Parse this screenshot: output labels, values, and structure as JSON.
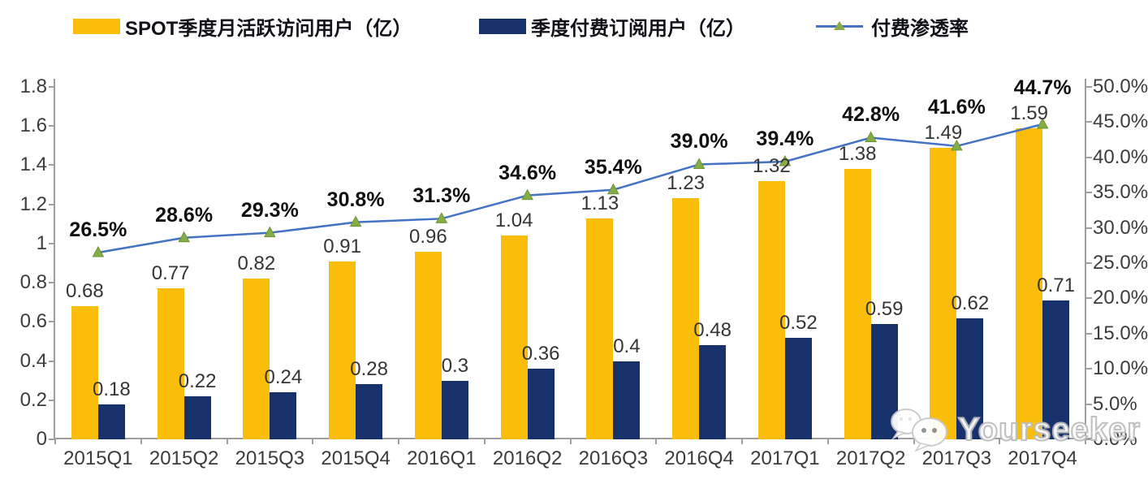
{
  "legend": [
    {
      "label": "SPOT季度月活跃访问用户（亿）",
      "type": "bar",
      "color": "#FBBD0B"
    },
    {
      "label": "季度付费订阅用户（亿）",
      "type": "bar",
      "color": "#17316D"
    },
    {
      "label": "付费渗透率",
      "type": "line",
      "color": "#4472C4",
      "marker_color": "#86AD45",
      "marker": "triangle-up"
    }
  ],
  "watermark": {
    "text": "Yourseeker",
    "icon": "wechat-icon"
  },
  "colors": {
    "mau_bar": "#FBBD0B",
    "subscriber_bar": "#17316D",
    "penetration_line": "#4472C4",
    "marker_green": "#86AD45",
    "axis_grey": "#9E9E9E",
    "label_dark": "#353535",
    "pct_black": "#101010"
  },
  "chart_data": {
    "type": "bar",
    "subtype": "combo-bar-line-dual-axis",
    "categories": [
      "2015Q1",
      "2015Q2",
      "2015Q3",
      "2015Q4",
      "2016Q1",
      "2016Q2",
      "2016Q3",
      "2016Q4",
      "2017Q1",
      "2017Q2",
      "2017Q3",
      "2017Q4"
    ],
    "series": [
      {
        "name": "SPOT季度月活跃访问用户（亿）",
        "type": "bar",
        "axis": "left",
        "color": "#FBBD0B",
        "values": [
          0.68,
          0.77,
          0.82,
          0.91,
          0.96,
          1.04,
          1.13,
          1.23,
          1.32,
          1.38,
          1.49,
          1.59
        ],
        "labels": [
          "0.68",
          "0.77",
          "0.82",
          "0.91",
          "0.96",
          "1.04",
          "1.13",
          "1.23",
          "1.32",
          "1.38",
          "1.49",
          "1.59"
        ]
      },
      {
        "name": "季度付费订阅用户（亿）",
        "type": "bar",
        "axis": "left",
        "color": "#17316D",
        "values": [
          0.18,
          0.22,
          0.24,
          0.28,
          0.3,
          0.36,
          0.4,
          0.48,
          0.52,
          0.59,
          0.62,
          0.71
        ],
        "labels": [
          "0.18",
          "0.22",
          "0.24",
          "0.28",
          "0.3",
          "0.36",
          "0.4",
          "0.48",
          "0.52",
          "0.59",
          "0.62",
          "0.71"
        ]
      },
      {
        "name": "付费渗透率",
        "type": "line",
        "axis": "right",
        "color": "#4472C4",
        "marker_color": "#86AD45",
        "values": [
          26.5,
          28.6,
          29.3,
          30.8,
          31.3,
          34.6,
          35.4,
          39.0,
          39.4,
          42.8,
          41.6,
          44.7
        ],
        "labels": [
          "26.5%",
          "28.6%",
          "29.3%",
          "30.8%",
          "31.3%",
          "34.6%",
          "35.4%",
          "39.0%",
          "39.4%",
          "42.8%",
          "41.6%",
          "44.7%"
        ]
      }
    ],
    "left_axis": {
      "min": 0,
      "max": 1.8,
      "step": 0.2,
      "ticks": [
        "0",
        "0.2",
        "0.4",
        "0.6",
        "0.8",
        "1",
        "1.2",
        "1.4",
        "1.6",
        "1.8"
      ]
    },
    "right_axis": {
      "min": 0,
      "max": 50,
      "step": 5,
      "ticks": [
        "0.0%",
        "5.0%",
        "10.0%",
        "15.0%",
        "20.0%",
        "25.0%",
        "30.0%",
        "35.0%",
        "40.0%",
        "45.0%",
        "50.0%"
      ]
    },
    "grid": false,
    "legend_position": "top"
  }
}
